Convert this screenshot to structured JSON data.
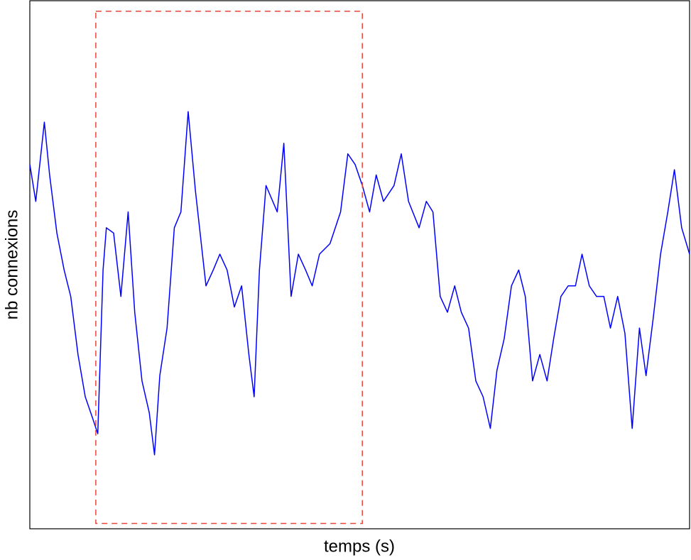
{
  "chart_data": {
    "type": "line",
    "xlabel": "temps (s)",
    "ylabel": "nb connexions",
    "xlim": [
      0,
      1000
    ],
    "ylim": [
      0,
      100
    ],
    "series": [
      {
        "color": "#0000ff",
        "x": [
          0,
          9,
          22,
          30,
          41,
          52,
          62,
          73,
          84,
          95,
          103,
          111,
          116,
          127,
          138,
          149,
          159,
          170,
          181,
          189,
          197,
          208,
          219,
          229,
          240,
          251,
          267,
          278,
          288,
          299,
          310,
          321,
          332,
          340,
          348,
          358,
          375,
          385,
          396,
          407,
          418,
          428,
          439,
          455,
          471,
          482,
          493,
          504,
          515,
          525,
          536,
          552,
          563,
          574,
          590,
          601,
          611,
          622,
          633,
          644,
          654,
          665,
          676,
          687,
          698,
          708,
          719,
          730,
          741,
          751,
          762,
          773,
          784,
          794,
          805,
          816,
          827,
          837,
          848,
          859,
          870,
          880,
          891,
          902,
          913,
          924,
          934,
          945,
          956,
          967,
          977,
          988,
          1000
        ],
        "values": [
          69,
          62,
          77,
          67,
          56,
          49,
          44,
          33,
          25,
          21,
          18,
          49,
          57,
          56,
          44,
          60,
          41,
          28,
          22,
          14,
          29,
          38,
          57,
          60,
          79,
          64,
          46,
          49,
          52,
          49,
          42,
          46,
          33,
          25,
          49,
          65,
          60,
          73,
          44,
          52,
          49,
          46,
          52,
          54,
          60,
          71,
          69,
          65,
          60,
          67,
          62,
          65,
          71,
          62,
          57,
          62,
          60,
          44,
          41,
          46,
          41,
          38,
          28,
          25,
          19,
          30,
          36,
          46,
          49,
          44,
          28,
          33,
          28,
          36,
          44,
          46,
          46,
          52,
          46,
          44,
          44,
          38,
          44,
          37,
          19,
          38,
          29,
          40,
          52,
          60,
          68,
          57,
          52
        ]
      }
    ],
    "highlight": {
      "x": [
        100,
        504
      ],
      "y": [
        1,
        98
      ],
      "color": "#e8443a"
    }
  }
}
